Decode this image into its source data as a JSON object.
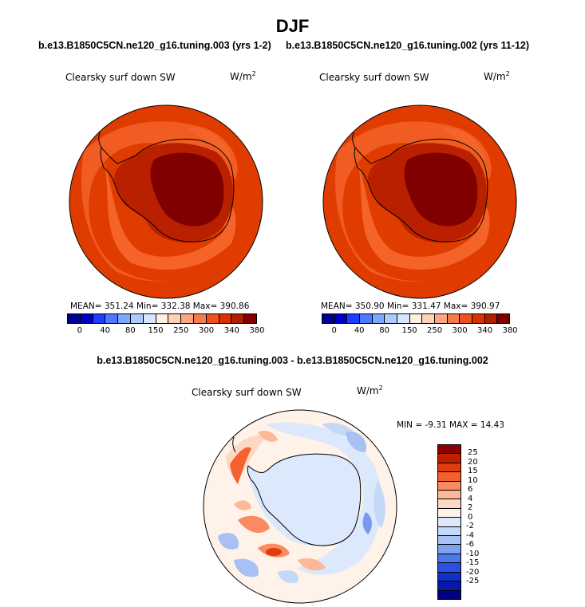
{
  "title": "DJF",
  "panels": [
    {
      "case": "b.e13.B1850C5CN.ne120_g16.tuning.003 (yrs 1-2)",
      "variable": "Clearsky surf down SW",
      "units": "W/m",
      "units_exp": "2",
      "stats": "MEAN= 351.24  Min= 332.38  Max= 390.86"
    },
    {
      "case": "b.e13.B1850C5CN.ne120_g16.tuning.002 (yrs 11-12)",
      "variable": "Clearsky surf down SW",
      "units": "W/m",
      "units_exp": "2",
      "stats": "MEAN= 350.90  Min= 331.47  Max= 390.97"
    }
  ],
  "colorbar": {
    "colors": [
      "#00008f",
      "#0000c4",
      "#1d3cff",
      "#4b79ff",
      "#7ea7ff",
      "#aecbff",
      "#d6e6ff",
      "#fff0e0",
      "#ffd2b8",
      "#fca784",
      "#f57a50",
      "#ee5020",
      "#d83200",
      "#b02000",
      "#7f0000"
    ],
    "ticks": [
      "0",
      "40",
      "80",
      "150",
      "250",
      "300",
      "340",
      "380"
    ]
  },
  "diff": {
    "title": "b.e13.B1850C5CN.ne120_g16.tuning.003 - b.e13.B1850C5CN.ne120_g16.tuning.002",
    "variable": "Clearsky surf down SW",
    "units": "W/m",
    "units_exp": "2",
    "stats": "MIN =  -9.31 MAX =  14.43",
    "colors": [
      "#8b0000",
      "#c02000",
      "#e03c10",
      "#f56030",
      "#fa8a60",
      "#fcb898",
      "#fdd8c4",
      "#fff2e8",
      "#dce8fb",
      "#c4d8f8",
      "#a8c0f4",
      "#7aa0ee",
      "#4c78e8",
      "#2a50e0",
      "#1030c8",
      "#0818a8",
      "#000080"
    ],
    "ticks": [
      "25",
      "20",
      "15",
      "10",
      "6",
      "4",
      "2",
      "0",
      "-2",
      "-4",
      "-6",
      "-10",
      "-15",
      "-20",
      "-25"
    ]
  }
}
